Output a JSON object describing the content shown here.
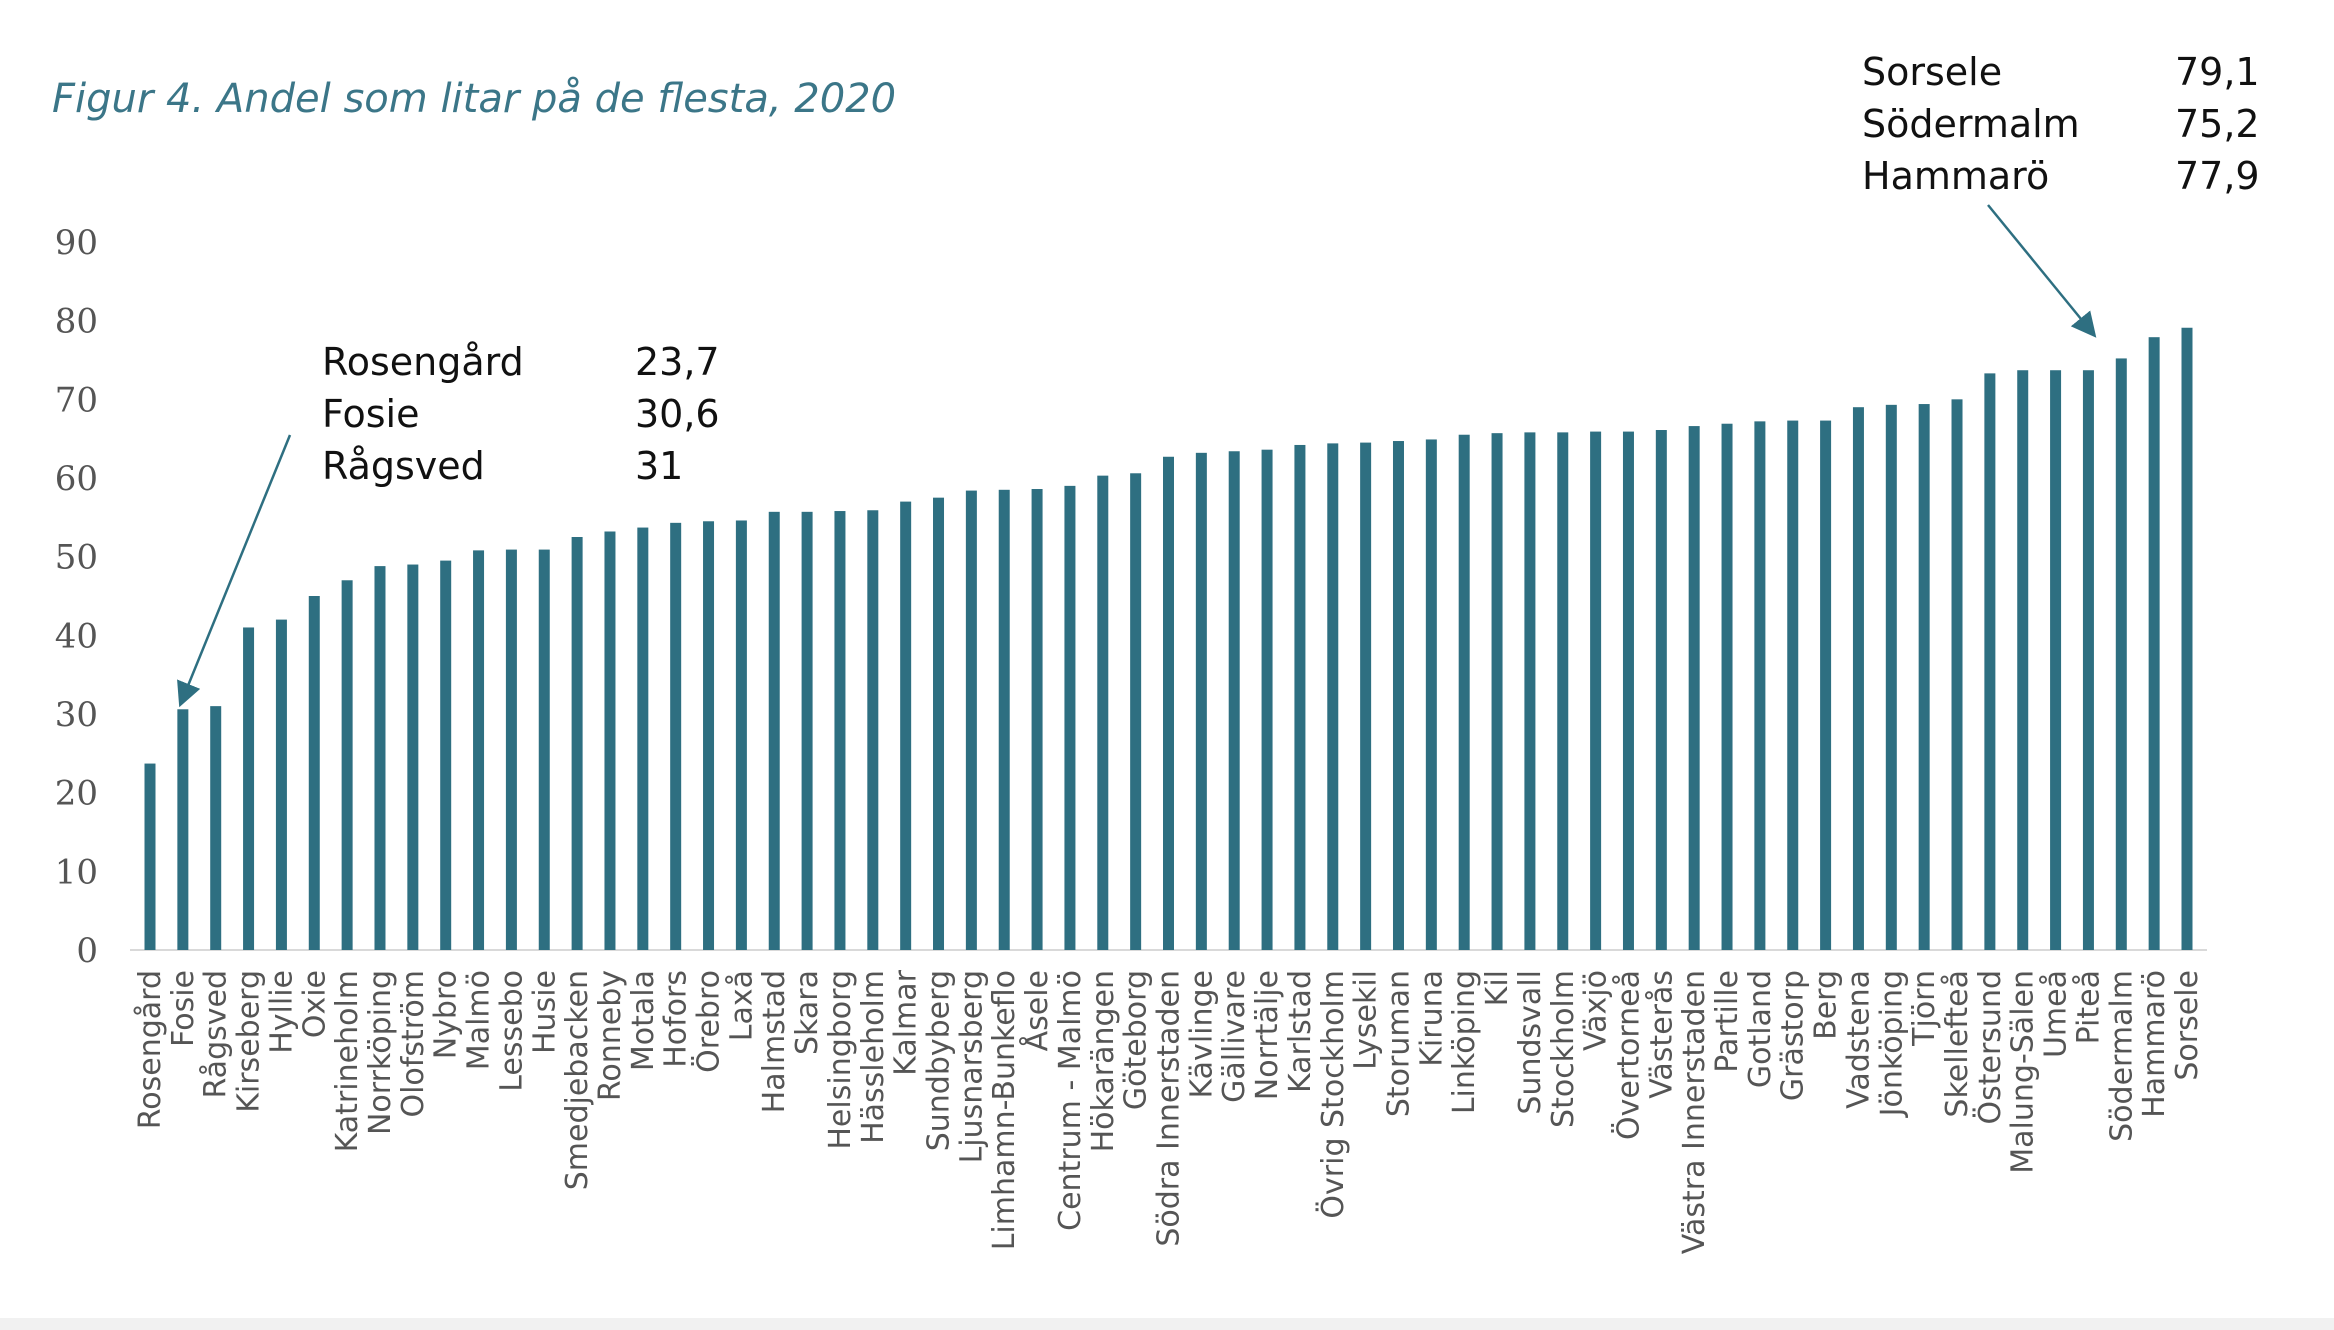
{
  "chart_data": {
    "type": "bar",
    "title": "Figur 4. Andel som litar på de flesta, 2020",
    "xlabel": "",
    "ylabel": "",
    "ylim": [
      0,
      90
    ],
    "yticks": [
      0,
      10,
      20,
      30,
      40,
      50,
      60,
      70,
      80,
      90
    ],
    "grid": false,
    "bar_color": "#2e6f81",
    "categories": [
      "Rosengård",
      "Fosie",
      "Rågsved",
      "Kirseberg",
      "Hyllie",
      "Oxie",
      "Katrineholm",
      "Norrköping",
      "Olofström",
      "Nybro",
      "Malmö",
      "Lessebo",
      "Husie",
      "Smedjebacken",
      "Ronneby",
      "Motala",
      "Hofors",
      "Örebro",
      "Laxå",
      "Halmstad",
      "Skara",
      "Helsingborg",
      "Hässleholm",
      "Kalmar",
      "Sundbyberg",
      "Ljusnarsberg",
      "Limhamn-Bunkeflo",
      "Åsele",
      "Centrum - Malmö",
      "Hökarängen",
      "Göteborg",
      "Södra Innerstaden",
      "Kävlinge",
      "Gällivare",
      "Norrtälje",
      "Karlstad",
      "Övrig Stockholm",
      "Lysekil",
      "Storuman",
      "Kiruna",
      "Linköping",
      "Kil",
      "Sundsvall",
      "Stockholm",
      "Växjö",
      "Övertorneå",
      "Västerås",
      "Västra Innerstaden",
      "Partille",
      "Gotland",
      "Grästorp",
      "Berg",
      "Vadstena",
      "Jönköping",
      "Tjörn",
      "Skellefteå",
      "Östersund",
      "Malung-Sälen",
      "Umeå",
      "Piteå",
      "Södermalm",
      "Hammarö",
      "Sorsele"
    ],
    "values": [
      23.7,
      30.6,
      31,
      41,
      42,
      45,
      47,
      48.8,
      49,
      49.5,
      50.8,
      50.9,
      50.9,
      52.5,
      53.2,
      53.7,
      54.3,
      54.5,
      54.6,
      55.7,
      55.7,
      55.8,
      55.9,
      57,
      57.5,
      58.4,
      58.5,
      58.6,
      59,
      60.3,
      60.6,
      62.7,
      63.2,
      63.4,
      63.6,
      64.2,
      64.4,
      64.5,
      64.7,
      64.9,
      65.5,
      65.7,
      65.8,
      65.8,
      65.9,
      65.9,
      66.1,
      66.6,
      66.9,
      67.2,
      67.3,
      67.3,
      69,
      69.3,
      69.4,
      70,
      73.3,
      73.7,
      73.7,
      73.7,
      75.2,
      77.9,
      79.1
    ],
    "annotations": [
      {
        "position": "left",
        "points_to": "Fosie",
        "rows": [
          {
            "label": "Rosengård",
            "value": "23,7"
          },
          {
            "label": "Fosie",
            "value": "30,6"
          },
          {
            "label": "Rågsved",
            "value": "31"
          }
        ]
      },
      {
        "position": "top-right",
        "points_to": "Piteå",
        "rows": [
          {
            "label": "Sorsele",
            "value": "79,1"
          },
          {
            "label": "Södermalm",
            "value": "75,2"
          },
          {
            "label": "Hammarö",
            "value": "77,9"
          }
        ]
      }
    ]
  }
}
